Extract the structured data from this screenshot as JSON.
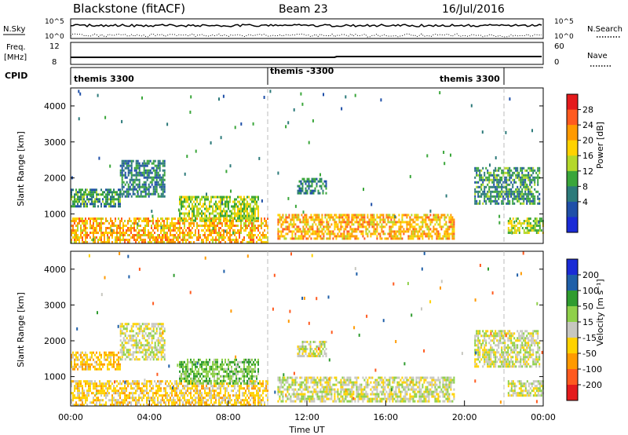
{
  "header": {
    "station": "Blackstone (fitACF)",
    "beam": "Beam 23",
    "date": "16/Jul/2016"
  },
  "sky_panel": {
    "left_label": "N.Sky",
    "right_label": "N.Search",
    "tick_top": "10^5",
    "tick_bottom": "10^0",
    "right_legend_style": "dotted"
  },
  "freq_panel": {
    "left_label_1": "Freq.",
    "left_label_2": "[MHz]",
    "right_label": "Nave",
    "left_ticks": [
      "12",
      "8"
    ],
    "right_ticks": [
      "60",
      "0"
    ]
  },
  "cpid": {
    "label": "CPID",
    "segments": [
      {
        "name": "themis 3300",
        "start_hour": 0,
        "end_hour": 10
      },
      {
        "name": "themis -3300",
        "start_hour": 10,
        "end_hour": 22
      },
      {
        "name": "themis 3300",
        "start_hour": 22,
        "end_hour": 24
      }
    ]
  },
  "power_panel": {
    "ylabel": "Slant Range [km]",
    "colorbar_label": "Power [dB]",
    "colorbar_ticks": [
      "28",
      "24",
      "20",
      "16",
      "12",
      "8",
      "4"
    ],
    "colors": [
      "#e41a1c",
      "#ff5a1f",
      "#ff9a00",
      "#ffd200",
      "#b4d82a",
      "#3aa63a",
      "#2c7a7a",
      "#1f4fa8",
      "#1a2bd6"
    ]
  },
  "velocity_panel": {
    "ylabel": "Slant Range [km]",
    "colorbar_label": "Velocity [m s⁻¹]",
    "colorbar_ticks": [
      "200",
      "100",
      "50",
      "15",
      "-15",
      "-50",
      "-100",
      "-200"
    ],
    "colors": [
      "#1a2bd6",
      "#1f5fa8",
      "#2f9c2f",
      "#8fd04a",
      "#c7c7c0",
      "#ffd200",
      "#ff9a00",
      "#ff5a1f",
      "#e41a1c"
    ]
  },
  "chart_data": {
    "type": "heatmap",
    "title": "Blackstone (fitACF) Beam 23 16/Jul/2016",
    "xlabel": "Time UT",
    "ylabel": "Slant Range [km]",
    "x_ticks": [
      "00:00",
      "04:00",
      "08:00",
      "12:00",
      "16:00",
      "20:00",
      "00:00"
    ],
    "x_range_hours": [
      0,
      24
    ],
    "y_ticks": [
      1000,
      2000,
      3000,
      4000
    ],
    "y_range_km": [
      180,
      4500
    ],
    "power_colorbar_db": [
      4,
      8,
      12,
      16,
      20,
      24,
      28
    ],
    "velocity_colorbar_ms": [
      -200,
      -100,
      -50,
      -15,
      15,
      50,
      100,
      200
    ],
    "echo_regions": [
      {
        "from_hour": 0.0,
        "to_hour": 10.0,
        "range_km": [
          200,
          900
        ],
        "power_db": 22,
        "velocity_ms": -30
      },
      {
        "from_hour": 0.0,
        "to_hour": 2.5,
        "range_km": [
          1200,
          1700
        ],
        "power_db": 10,
        "velocity_ms": -40
      },
      {
        "from_hour": 2.5,
        "to_hour": 4.8,
        "range_km": [
          1500,
          2500
        ],
        "power_db": 8,
        "velocity_ms": 0
      },
      {
        "from_hour": 5.5,
        "to_hour": 9.5,
        "range_km": [
          800,
          1500
        ],
        "power_db": 16,
        "velocity_ms": 40
      },
      {
        "from_hour": 10.5,
        "to_hour": 19.5,
        "range_km": [
          300,
          1000
        ],
        "power_db": 22,
        "velocity_ms": 0
      },
      {
        "from_hour": 11.5,
        "to_hour": 13.0,
        "range_km": [
          1600,
          2000
        ],
        "power_db": 8,
        "velocity_ms": 0
      },
      {
        "from_hour": 20.5,
        "to_hour": 23.8,
        "range_km": [
          1300,
          2300
        ],
        "power_db": 10,
        "velocity_ms": 0
      },
      {
        "from_hour": 22.2,
        "to_hour": 24.0,
        "range_km": [
          500,
          900
        ],
        "power_db": 16,
        "velocity_ms": 0
      }
    ]
  }
}
